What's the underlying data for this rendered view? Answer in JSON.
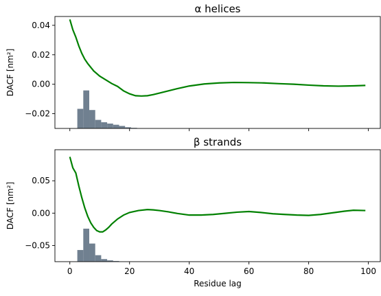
{
  "chart_data": [
    {
      "type": "line",
      "title": "α helices",
      "xlabel": "",
      "ylabel": "DACF [nm²]",
      "xlim": [
        -5,
        104
      ],
      "ylim": [
        -0.03,
        0.046
      ],
      "x_ticks": [
        0,
        20,
        40,
        60,
        80,
        100
      ],
      "y_ticks": [
        0.04,
        0.02,
        0.0,
        -0.02
      ],
      "y_tick_labels": [
        "0.04",
        "0.02",
        "0.00",
        "−0.02"
      ],
      "grid": false,
      "series": [
        {
          "x": [
            0,
            1,
            2,
            3,
            4,
            5,
            6,
            8,
            10,
            12,
            14,
            16,
            18,
            20,
            22,
            24,
            26,
            28,
            30,
            33,
            36,
            40,
            45,
            50,
            55,
            60,
            65,
            70,
            75,
            80,
            85,
            90,
            95,
            99
          ],
          "y": [
            0.044,
            0.037,
            0.032,
            0.026,
            0.021,
            0.017,
            0.014,
            0.009,
            0.0055,
            0.003,
            0.0005,
            -0.0015,
            -0.0045,
            -0.0065,
            -0.0078,
            -0.008,
            -0.0078,
            -0.007,
            -0.006,
            -0.0045,
            -0.003,
            -0.0012,
            0.0002,
            0.0009,
            0.0012,
            0.0011,
            0.0009,
            0.0004,
            0.0,
            -0.0006,
            -0.0011,
            -0.0013,
            -0.0011,
            -0.0008
          ],
          "color": "#008000"
        }
      ],
      "histogram": {
        "bin_starts": [
          2.5,
          4.5,
          6.5,
          8.5,
          10.5,
          12.5,
          14.5,
          16.5,
          18.5,
          20.5
        ],
        "bin_width": 2,
        "counts": [
          0.0133,
          0.0258,
          0.0125,
          0.0058,
          0.0042,
          0.0033,
          0.0025,
          0.0017,
          0.0008,
          0.0004
        ],
        "baseline": -0.03,
        "color": "#708090"
      }
    },
    {
      "type": "line",
      "title": "β strands",
      "xlabel": "Residue lag",
      "ylabel": "DACF [nm²]",
      "xlim": [
        -5,
        104
      ],
      "ylim": [
        -0.075,
        0.098
      ],
      "x_ticks": [
        0,
        20,
        40,
        60,
        80,
        100
      ],
      "x_tick_labels": [
        "0",
        "20",
        "40",
        "60",
        "80",
        "100"
      ],
      "y_ticks": [
        0.05,
        0.0,
        -0.05
      ],
      "y_tick_labels": [
        "0.05",
        "0.00",
        "−0.05"
      ],
      "grid": false,
      "series": [
        {
          "x": [
            0,
            1,
            2,
            3,
            4,
            5,
            6,
            7,
            8,
            9,
            10,
            11,
            12,
            13,
            14,
            16,
            18,
            20,
            23,
            26,
            28,
            30,
            33,
            36,
            40,
            44,
            48,
            52,
            56,
            60,
            64,
            68,
            72,
            76,
            80,
            84,
            88,
            92,
            95,
            99
          ],
          "y": [
            0.087,
            0.07,
            0.062,
            0.042,
            0.024,
            0.008,
            -0.005,
            -0.015,
            -0.022,
            -0.027,
            -0.029,
            -0.029,
            -0.026,
            -0.022,
            -0.017,
            -0.009,
            -0.003,
            0.001,
            0.004,
            0.0055,
            0.005,
            0.004,
            0.002,
            -0.0005,
            -0.003,
            -0.003,
            -0.002,
            -0.0003,
            0.0015,
            0.0025,
            0.001,
            -0.001,
            -0.002,
            -0.003,
            -0.0035,
            -0.002,
            0.0005,
            0.003,
            0.0045,
            0.004
          ],
          "color": "#008000"
        }
      ],
      "histogram": {
        "bin_starts": [
          2.5,
          4.5,
          6.5,
          8.5,
          10.5,
          12.5,
          14.5
        ],
        "bin_width": 2,
        "counts": [
          0.018,
          0.051,
          0.028,
          0.01,
          0.004,
          0.002,
          0.001
        ],
        "baseline": -0.075,
        "color": "#708090"
      }
    }
  ]
}
